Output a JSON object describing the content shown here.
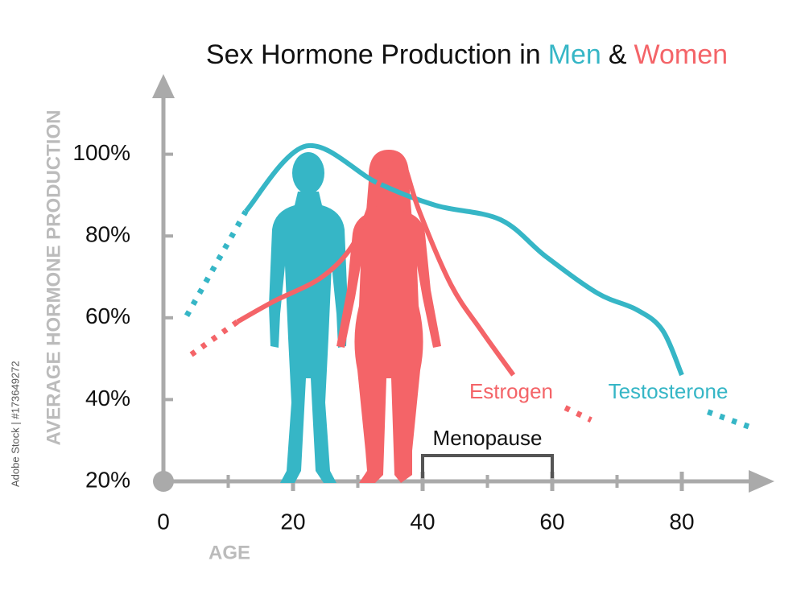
{
  "chart_data": {
    "type": "line",
    "title_parts": [
      {
        "text": "Sex Hormone Production in",
        "color": "#111111"
      },
      {
        "text": "Men",
        "color": "#36b6c6"
      },
      {
        "text": "&",
        "color": "#111111"
      },
      {
        "text": "Women",
        "color": "#f46468"
      }
    ],
    "y_label": "AVERAGE HORMONE PRODUCTION",
    "x_label": "AGE",
    "watermark": "Adobe Stock | #173649272",
    "xlim": [
      0,
      92
    ],
    "ylim": [
      20,
      115
    ],
    "xticks": [
      0,
      20,
      40,
      60,
      80
    ],
    "xminorticks": [
      10,
      30,
      50,
      70
    ],
    "yticks": [
      {
        "value": 20,
        "label": "20%"
      },
      {
        "value": 40,
        "label": "40%"
      },
      {
        "value": 60,
        "label": "60%"
      },
      {
        "value": 80,
        "label": "80%"
      },
      {
        "value": 100,
        "label": "100%"
      }
    ],
    "series": [
      {
        "name": "Testosterone",
        "color": "#36b6c6",
        "segments": [
          {
            "style": "dotted",
            "x": [
              3.6,
              12.7
            ],
            "values": [
              60.5,
              86
            ]
          },
          {
            "style": "solid",
            "x": [
              12.7,
              22,
              33,
              42,
              52,
              59,
              67,
              73,
              77,
              80
            ],
            "values": [
              86,
              102,
              93,
              87.5,
              84,
              75,
              66,
              62,
              57,
              46
            ]
          },
          {
            "style": "dotted",
            "x": [
              84,
              91
            ],
            "values": [
              37,
              33
            ]
          }
        ]
      },
      {
        "name": "Estrogen",
        "color": "#f46468",
        "segments": [
          {
            "style": "dotted",
            "x": [
              4.3,
              11.4
            ],
            "values": [
              51,
              59
            ]
          },
          {
            "style": "solid",
            "x": [
              11.4,
              17,
              24.5,
              29.5,
              33,
              35.3,
              37,
              39.5,
              44.4,
              49,
              54
            ],
            "values": [
              59,
              64,
              70,
              78.5,
              92,
              99,
              98,
              86,
              68,
              57,
              46
            ]
          },
          {
            "style": "dotted",
            "x": [
              62,
              66
            ],
            "values": [
              38,
              35
            ]
          }
        ]
      }
    ],
    "menopause": {
      "label": "Menopause",
      "range": [
        40,
        60
      ]
    }
  }
}
